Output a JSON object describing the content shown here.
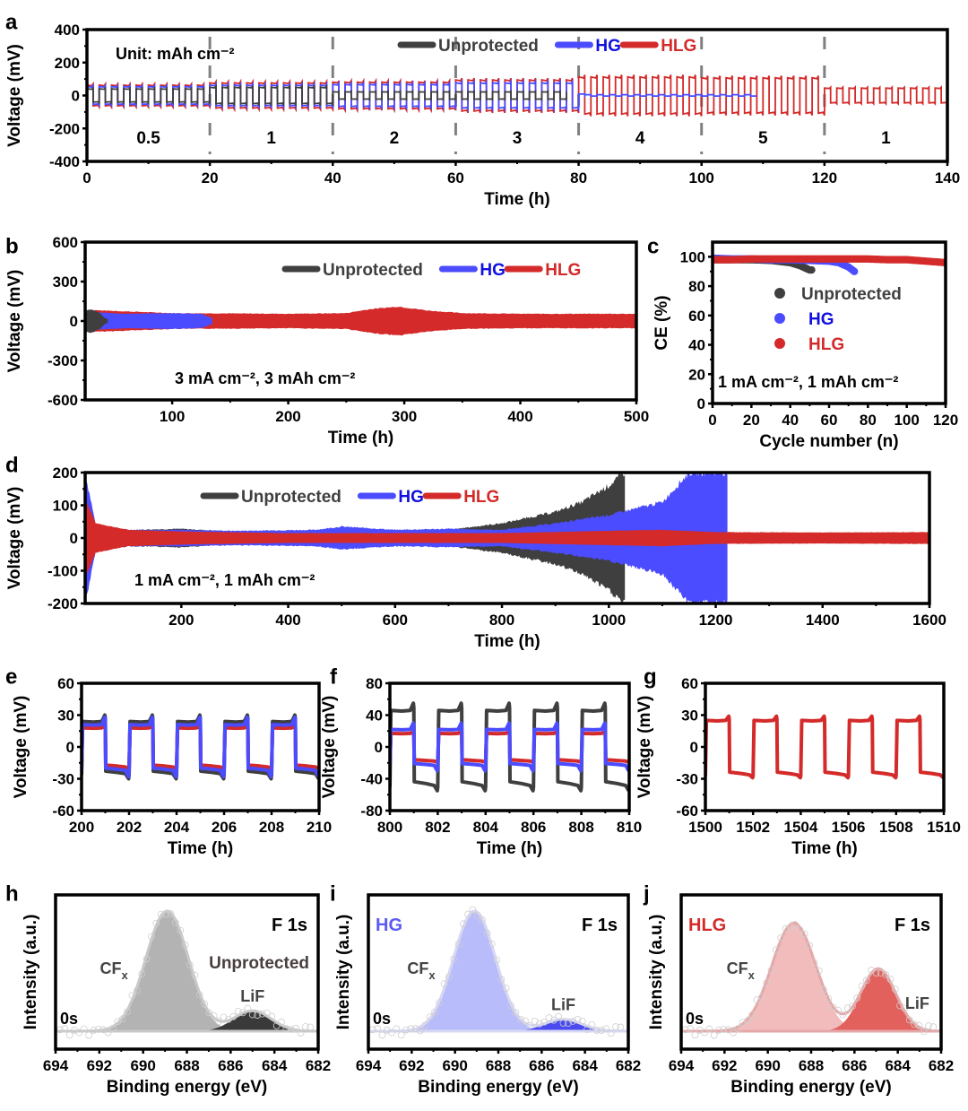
{
  "colors": {
    "unprotected": "#3f3f3f",
    "hg": "#4b4bff",
    "hlg": "#d42a2a",
    "hg_text": "#1010e0",
    "hlg_text": "#d42a2a",
    "divider": "#808080",
    "xps_unprot_main": "#b3b3b3",
    "xps_unprot_lif": "#3a3a3a",
    "xps_unprot_env": "#c8c8c8",
    "xps_hg_main": "#b9bcfb",
    "xps_hg_lif": "#4a4af0",
    "xps_hg_env": "#d7d8f2",
    "xps_hlg_main": "#f2bcbc",
    "xps_hlg_lif": "#e2615d",
    "xps_hlg_env": "#e4a8a8"
  },
  "chart_data": [
    {
      "id": "a",
      "panel_label": "a",
      "type": "line",
      "title": "",
      "xlabel": "Time (h)",
      "ylabel": "Voltage (mV)",
      "xlim": [
        0,
        140
      ],
      "ylim": [
        -400,
        400
      ],
      "xticks": [
        0,
        20,
        40,
        60,
        80,
        100,
        120,
        140
      ],
      "yticks": [
        -400,
        -200,
        0,
        200,
        400
      ],
      "legend": [
        "Unprotected",
        "HG",
        "HLG"
      ],
      "legend_position": "top-right",
      "annotation": "Unit: mAh cm⁻²",
      "dividers": [
        20,
        40,
        60,
        80,
        100,
        120
      ],
      "segments": [
        {
          "label": "0.5",
          "from": 0,
          "to": 20
        },
        {
          "label": "1",
          "from": 20,
          "to": 40
        },
        {
          "label": "2",
          "from": 40,
          "to": 60
        },
        {
          "label": "3",
          "from": 60,
          "to": 80
        },
        {
          "label": "4",
          "from": 80,
          "to": 100
        },
        {
          "label": "5",
          "from": 100,
          "to": 120
        },
        {
          "label": "1",
          "from": 120,
          "to": 140
        }
      ],
      "series": [
        {
          "name": "Unprotected",
          "end_time": 80,
          "amplitude_by_segment": [
            {
              "from": 0,
              "to": 20,
              "mV": 45
            },
            {
              "from": 20,
              "to": 40,
              "mV": 55
            },
            {
              "from": 40,
              "to": 80,
              "mV": 25
            }
          ]
        },
        {
          "name": "HG",
          "end_time": 108,
          "amplitude_by_segment": [
            {
              "from": 0,
              "to": 20,
              "mV": 60
            },
            {
              "from": 20,
              "to": 40,
              "mV": 70
            },
            {
              "from": 40,
              "to": 60,
              "mV": 75
            },
            {
              "from": 60,
              "to": 80,
              "mV": 85
            },
            {
              "from": 80,
              "to": 108,
              "mV": 10
            }
          ]
        },
        {
          "name": "HLG",
          "end_time": 140,
          "amplitude_by_segment": [
            {
              "from": 0,
              "to": 20,
              "mV": 70
            },
            {
              "from": 20,
              "to": 40,
              "mV": 85
            },
            {
              "from": 40,
              "to": 60,
              "mV": 90
            },
            {
              "from": 60,
              "to": 80,
              "mV": 105
            },
            {
              "from": 80,
              "to": 100,
              "mV": 125
            },
            {
              "from": 100,
              "to": 120,
              "mV": 120
            },
            {
              "from": 120,
              "to": 140,
              "mV": 50
            }
          ]
        }
      ]
    },
    {
      "id": "b",
      "panel_label": "b",
      "type": "area",
      "xlabel": "Time (h)",
      "ylabel": "Voltage (mV)",
      "xlim": [
        25,
        500
      ],
      "ylim": [
        -600,
        600
      ],
      "xticks": [
        100,
        200,
        300,
        400,
        500
      ],
      "yticks": [
        -600,
        -300,
        0,
        300,
        600
      ],
      "legend": [
        "Unprotected",
        "HG",
        "HLG"
      ],
      "legend_position": "top-right",
      "annotation": "3 mA cm⁻², 3 mAh cm⁻²",
      "series": [
        {
          "name": "Unprotected",
          "envelope": [
            [
              25,
              80
            ],
            [
              30,
              90
            ],
            [
              38,
              60
            ],
            [
              42,
              20
            ],
            [
              45,
              15
            ]
          ]
        },
        {
          "name": "HG",
          "envelope": [
            [
              25,
              70
            ],
            [
              60,
              55
            ],
            [
              100,
              60
            ],
            [
              125,
              55
            ],
            [
              135,
              20
            ]
          ]
        },
        {
          "name": "HLG",
          "envelope": [
            [
              25,
              85
            ],
            [
              100,
              60
            ],
            [
              200,
              55
            ],
            [
              250,
              60
            ],
            [
              270,
              90
            ],
            [
              295,
              110
            ],
            [
              320,
              80
            ],
            [
              350,
              60
            ],
            [
              400,
              55
            ],
            [
              500,
              55
            ]
          ]
        }
      ]
    },
    {
      "id": "c",
      "panel_label": "c",
      "type": "scatter",
      "xlabel": "Cycle number (n)",
      "ylabel": "CE (%)",
      "xlim": [
        0,
        120
      ],
      "ylim": [
        0,
        110
      ],
      "xticks": [
        0,
        20,
        40,
        60,
        80,
        100,
        120
      ],
      "yticks": [
        0,
        20,
        40,
        60,
        80,
        100
      ],
      "legend": [
        "Unprotected",
        "HG",
        "HLG"
      ],
      "legend_position": "center-right",
      "annotation": "1 mA cm⁻², 1 mAh cm⁻²",
      "series": [
        {
          "name": "Unprotected",
          "points": [
            [
              0,
              98
            ],
            [
              10,
              98
            ],
            [
              20,
              98
            ],
            [
              30,
              97.5
            ],
            [
              40,
              96
            ],
            [
              45,
              94
            ],
            [
              50,
              91
            ],
            [
              51,
              91
            ]
          ]
        },
        {
          "name": "HG",
          "points": [
            [
              0,
              99
            ],
            [
              10,
              98.5
            ],
            [
              20,
              98.5
            ],
            [
              30,
              98
            ],
            [
              40,
              98
            ],
            [
              50,
              97.5
            ],
            [
              60,
              97
            ],
            [
              65,
              96
            ],
            [
              70,
              93
            ],
            [
              73,
              90
            ]
          ]
        },
        {
          "name": "HLG",
          "points": [
            [
              0,
              98
            ],
            [
              10,
              98
            ],
            [
              20,
              98.5
            ],
            [
              30,
              98.5
            ],
            [
              40,
              98.5
            ],
            [
              50,
              98.5
            ],
            [
              60,
              98.5
            ],
            [
              70,
              98.5
            ],
            [
              80,
              98.5
            ],
            [
              90,
              98
            ],
            [
              100,
              98
            ],
            [
              110,
              97
            ],
            [
              120,
              96
            ]
          ]
        }
      ]
    },
    {
      "id": "d",
      "panel_label": "d",
      "type": "area",
      "xlabel": "Time (h)",
      "ylabel": "Voltage (mV)",
      "xlim": [
        20,
        1600
      ],
      "ylim": [
        -200,
        200
      ],
      "xticks": [
        200,
        400,
        600,
        800,
        1000,
        1200,
        1400,
        1600
      ],
      "yticks": [
        -200,
        -100,
        0,
        100,
        200
      ],
      "legend": [
        "Unprotected",
        "HG",
        "HLG"
      ],
      "legend_position": "top-left",
      "annotation": "1 mA cm⁻², 1 mAh cm⁻²",
      "series": [
        {
          "name": "Unprotected",
          "envelope": [
            [
              20,
              180
            ],
            [
              40,
              40
            ],
            [
              100,
              25
            ],
            [
              200,
              28
            ],
            [
              300,
              20
            ],
            [
              450,
              22
            ],
            [
              500,
              25
            ],
            [
              600,
              20
            ],
            [
              700,
              25
            ],
            [
              800,
              45
            ],
            [
              900,
              80
            ],
            [
              950,
              110
            ],
            [
              1000,
              160
            ],
            [
              1030,
              200
            ]
          ]
        },
        {
          "name": "HG",
          "envelope": [
            [
              20,
              200
            ],
            [
              40,
              40
            ],
            [
              100,
              25
            ],
            [
              200,
              25
            ],
            [
              300,
              22
            ],
            [
              450,
              25
            ],
            [
              500,
              35
            ],
            [
              600,
              25
            ],
            [
              700,
              28
            ],
            [
              800,
              25
            ],
            [
              900,
              45
            ],
            [
              1000,
              70
            ],
            [
              1100,
              110
            ],
            [
              1150,
              200
            ],
            [
              1222,
              200
            ]
          ]
        },
        {
          "name": "HLG",
          "envelope": [
            [
              20,
              120
            ],
            [
              40,
              45
            ],
            [
              100,
              25
            ],
            [
              200,
              20
            ],
            [
              400,
              15
            ],
            [
              600,
              15
            ],
            [
              800,
              15
            ],
            [
              1000,
              22
            ],
            [
              1100,
              25
            ],
            [
              1200,
              18
            ],
            [
              1400,
              17
            ],
            [
              1600,
              18
            ]
          ]
        }
      ]
    },
    {
      "id": "e",
      "panel_label": "e",
      "type": "line",
      "xlabel": "Time (h)",
      "ylabel": "Voltage (mV)",
      "xlim": [
        200,
        210
      ],
      "ylim": [
        -60,
        60
      ],
      "xticks": [
        200,
        202,
        204,
        206,
        208,
        210
      ],
      "yticks": [
        -60,
        -30,
        0,
        30,
        60
      ],
      "series": [
        {
          "name": "Unprotected",
          "plateau_mV": 24,
          "peak_mV": 30
        },
        {
          "name": "HLG",
          "plateau_mV": 18,
          "peak_mV": 20
        },
        {
          "name": "HG",
          "plateau_mV": 21,
          "peak_mV": 28
        }
      ],
      "period_h": 2
    },
    {
      "id": "f",
      "panel_label": "f",
      "type": "line",
      "xlabel": "Time (h)",
      "ylabel": "Voltage (mV)",
      "xlim": [
        800,
        810
      ],
      "ylim": [
        -80,
        80
      ],
      "xticks": [
        800,
        802,
        804,
        806,
        808,
        810
      ],
      "yticks": [
        -80,
        -40,
        0,
        40,
        80
      ],
      "series": [
        {
          "name": "Unprotected",
          "plateau_mV": 46,
          "peak_mV": 55
        },
        {
          "name": "HLG",
          "plateau_mV": 17,
          "peak_mV": 19
        },
        {
          "name": "HG",
          "plateau_mV": 22,
          "peak_mV": 30
        }
      ],
      "period_h": 2
    },
    {
      "id": "g",
      "panel_label": "g",
      "type": "line",
      "xlabel": "Time (h)",
      "ylabel": "Voltage (mV)",
      "xlim": [
        1500,
        1510
      ],
      "ylim": [
        -60,
        60
      ],
      "xticks": [
        1500,
        1502,
        1504,
        1506,
        1508,
        1510
      ],
      "yticks": [
        -60,
        -30,
        0,
        30,
        60
      ],
      "series": [
        {
          "name": "HLG",
          "plateau_mV": 25,
          "peak_mV": 29
        }
      ],
      "period_h": 2
    },
    {
      "id": "h",
      "panel_label": "h",
      "type": "area",
      "xlabel": "Binding energy (eV)",
      "ylabel": "Intensity (a.u.)",
      "xlim": [
        694,
        682
      ],
      "xticks": [
        694,
        692,
        690,
        688,
        686,
        684,
        682
      ],
      "sample": "Unprotected",
      "core_level": "F 1s",
      "depth": "0s",
      "peaks": [
        {
          "name": "CFₓ",
          "label": "CF",
          "sub": "x",
          "center_eV": 688.9,
          "fwhm_eV": 2.3,
          "height": 1.0
        },
        {
          "name": "LiF",
          "label": "LiF",
          "sub": "",
          "center_eV": 685.0,
          "fwhm_eV": 2.0,
          "height": 0.17
        }
      ]
    },
    {
      "id": "i",
      "panel_label": "i",
      "type": "area",
      "xlabel": "Binding energy (eV)",
      "ylabel": "Intensity (a.u.)",
      "xlim": [
        694,
        682
      ],
      "xticks": [
        694,
        692,
        690,
        688,
        686,
        684,
        682
      ],
      "sample": "HG",
      "core_level": "F 1s",
      "depth": "0s",
      "peaks": [
        {
          "name": "CFₓ",
          "label": "CF",
          "sub": "x",
          "center_eV": 689.1,
          "fwhm_eV": 2.3,
          "height": 1.0
        },
        {
          "name": "LiF",
          "label": "LiF",
          "sub": "",
          "center_eV": 685.0,
          "fwhm_eV": 2.0,
          "height": 0.1
        }
      ]
    },
    {
      "id": "j",
      "panel_label": "j",
      "type": "area",
      "xlabel": "Binding energy (eV)",
      "ylabel": "Intensity (a.u.)",
      "xlim": [
        694,
        682
      ],
      "xticks": [
        694,
        692,
        690,
        688,
        686,
        684,
        682
      ],
      "sample": "HLG",
      "core_level": "F 1s",
      "depth": "0s",
      "peaks": [
        {
          "name": "CFₓ",
          "label": "CF",
          "sub": "x",
          "center_eV": 688.8,
          "fwhm_eV": 2.4,
          "height": 0.9
        },
        {
          "name": "LiF",
          "label": "LiF",
          "sub": "",
          "center_eV": 684.9,
          "fwhm_eV": 1.9,
          "height": 0.52
        }
      ]
    }
  ]
}
